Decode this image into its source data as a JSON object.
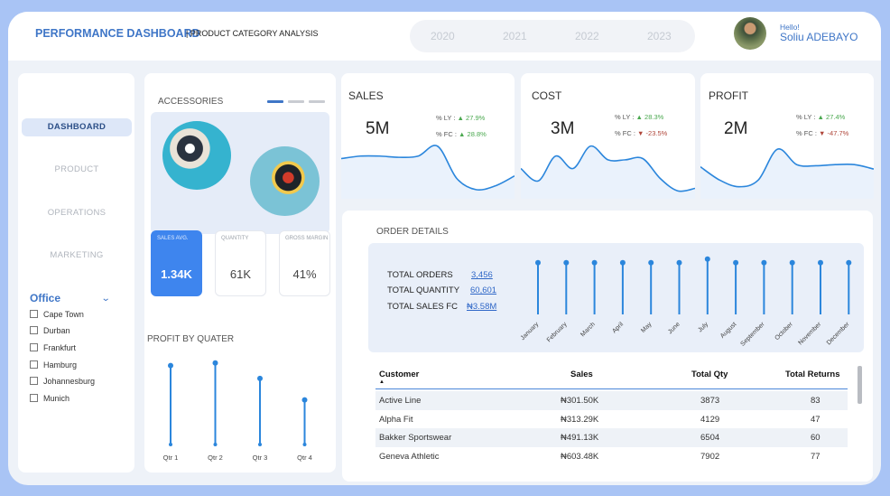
{
  "header": {
    "title": "PERFORMANCE DASHBOARD",
    "subtitle": "| PRODUCT CATEGORY ANALYSIS",
    "years": [
      "2020",
      "2021",
      "2022",
      "2023"
    ],
    "greeting": "Hello!",
    "user_name": "Soliu ADEBAYO"
  },
  "sidebar": {
    "nav": [
      "DASHBOARD",
      "PRODUCT",
      "OPERATIONS",
      "MARKETING"
    ],
    "filter_title": "Office",
    "offices": [
      "Cape Town",
      "Durban",
      "Frankfurt",
      "Hamburg",
      "Johannesburg",
      "Munich"
    ]
  },
  "category": {
    "title": "ACCESSORIES",
    "cards": [
      {
        "label": "SALES AVG.",
        "value": "1.34K"
      },
      {
        "label": "QUANTITY",
        "value": "61K"
      },
      {
        "label": "GROSS MARGIN",
        "value": "41%"
      }
    ]
  },
  "profit_by_quarter": {
    "title": "PROFIT BY QUATER",
    "chart_data": {
      "type": "lollipop",
      "title": "PROFIT BY QUATER",
      "categories": [
        "Qtr 1",
        "Qtr 2",
        "Qtr 3",
        "Qtr 4"
      ],
      "values": [
        0.92,
        0.95,
        0.77,
        0.52
      ],
      "ylim": [
        0,
        1
      ]
    }
  },
  "kpis": [
    {
      "title": "SALES",
      "value": "5M",
      "ly_label": "% LY :",
      "ly_arrow": "▲",
      "ly_value": "27.9%",
      "ly_trend": "up",
      "fc_label": "% FC :",
      "fc_arrow": "▲",
      "fc_value": "28.8%",
      "fc_trend": "up",
      "chart_data": {
        "type": "area",
        "values": [
          28,
          30,
          30,
          29,
          30,
          38,
          12,
          3,
          6,
          14
        ],
        "ylim": [
          0,
          40
        ]
      }
    },
    {
      "title": "COST",
      "value": "3M",
      "ly_label": "% LY :",
      "ly_arrow": "▲",
      "ly_value": "28.3%",
      "ly_trend": "up",
      "fc_label": "% FC :",
      "fc_arrow": "▼",
      "fc_value": "-23.5%",
      "fc_trend": "down",
      "chart_data": {
        "type": "area",
        "values": [
          20,
          10,
          30,
          20,
          38,
          27,
          27,
          28,
          12,
          2,
          4
        ],
        "ylim": [
          0,
          40
        ]
      }
    },
    {
      "title": "PROFIT",
      "value": "2M",
      "ly_label": "% LY :",
      "ly_arrow": "▲",
      "ly_value": "27.4%",
      "ly_trend": "up",
      "fc_label": "% FC :",
      "fc_arrow": "▼",
      "fc_value": "-47.7%",
      "fc_trend": "down",
      "chart_data": {
        "type": "area",
        "values": [
          24,
          12,
          6,
          12,
          40,
          26,
          25,
          26,
          26,
          22
        ],
        "ylim": [
          0,
          45
        ]
      }
    }
  ],
  "orders": {
    "title": "ORDER DETAILS",
    "totals": [
      {
        "label": "TOTAL ORDERS",
        "value": "3,456"
      },
      {
        "label": "TOTAL QUANTITY",
        "value": "60,601"
      },
      {
        "label": "TOTAL SALES FC",
        "value": "₦3.58M"
      }
    ],
    "chart_data": {
      "type": "lollipop",
      "categories": [
        "January",
        "February",
        "March",
        "April",
        "May",
        "June",
        "July",
        "August",
        "September",
        "October",
        "November",
        "December"
      ],
      "values": [
        1.0,
        1.0,
        1.0,
        1.0,
        1.0,
        1.0,
        1.07,
        1.0,
        1.0,
        1.0,
        1.0,
        1.0
      ],
      "ylim": [
        0,
        1.1
      ]
    }
  },
  "table": {
    "columns": [
      "Customer",
      "Sales",
      "Total Qty",
      "Total Returns"
    ],
    "sort_indicator": "▲",
    "rows": [
      [
        "Active Line",
        "₦301.50K",
        "3873",
        "83"
      ],
      [
        "Alpha Fit",
        "₦313.29K",
        "4129",
        "47"
      ],
      [
        "Bakker Sportswear",
        "₦491.13K",
        "6504",
        "60"
      ],
      [
        "Geneva Athletic",
        "₦603.48K",
        "7902",
        "77"
      ]
    ]
  },
  "colors": {
    "accent": "#3f76c7",
    "line": "#2b86dc",
    "up": "#4aa84f",
    "down": "#b0473b"
  }
}
